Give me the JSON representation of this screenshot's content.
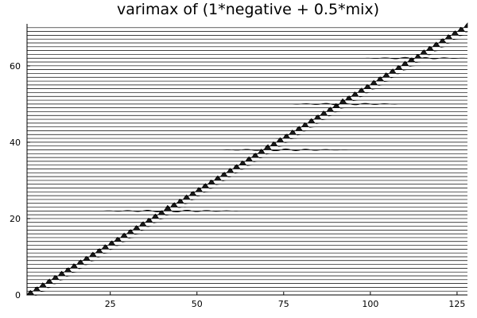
{
  "chart_data": {
    "type": "line",
    "title": "varimax of (1*negative + 0.5*mix)",
    "xlabel": "",
    "ylabel": "",
    "xlim": [
      1,
      128
    ],
    "ylim": [
      0,
      71
    ],
    "xticks": [
      25,
      50,
      75,
      100,
      125
    ],
    "yticks": [
      0,
      20,
      40,
      60
    ],
    "grid": false,
    "legend": "none",
    "n_traces": 71,
    "trace_baselines": [
      0,
      1,
      2,
      3,
      4,
      5,
      6,
      7,
      8,
      9,
      10,
      11,
      12,
      13,
      14,
      15,
      16,
      17,
      18,
      19,
      20,
      21,
      22,
      23,
      24,
      25,
      26,
      27,
      28,
      29,
      30,
      31,
      32,
      33,
      34,
      35,
      36,
      37,
      38,
      39,
      40,
      41,
      42,
      43,
      44,
      45,
      46,
      47,
      48,
      49,
      50,
      51,
      52,
      53,
      54,
      55,
      56,
      57,
      58,
      59,
      60,
      61,
      62,
      63,
      64,
      65,
      66,
      67,
      68,
      69,
      70
    ],
    "peak_position": "x ≈ 1.8*baseline + 2",
    "peak_height": 1.2,
    "oscillating_traces": [
      {
        "baseline": 22,
        "x_range": [
          20,
          64
        ]
      },
      {
        "baseline": 38,
        "x_range": [
          55,
          95
        ]
      },
      {
        "baseline": 50,
        "x_range": [
          75,
          110
        ]
      },
      {
        "baseline": 62,
        "x_range": [
          98,
          128
        ]
      }
    ],
    "line_color": "#000000"
  }
}
